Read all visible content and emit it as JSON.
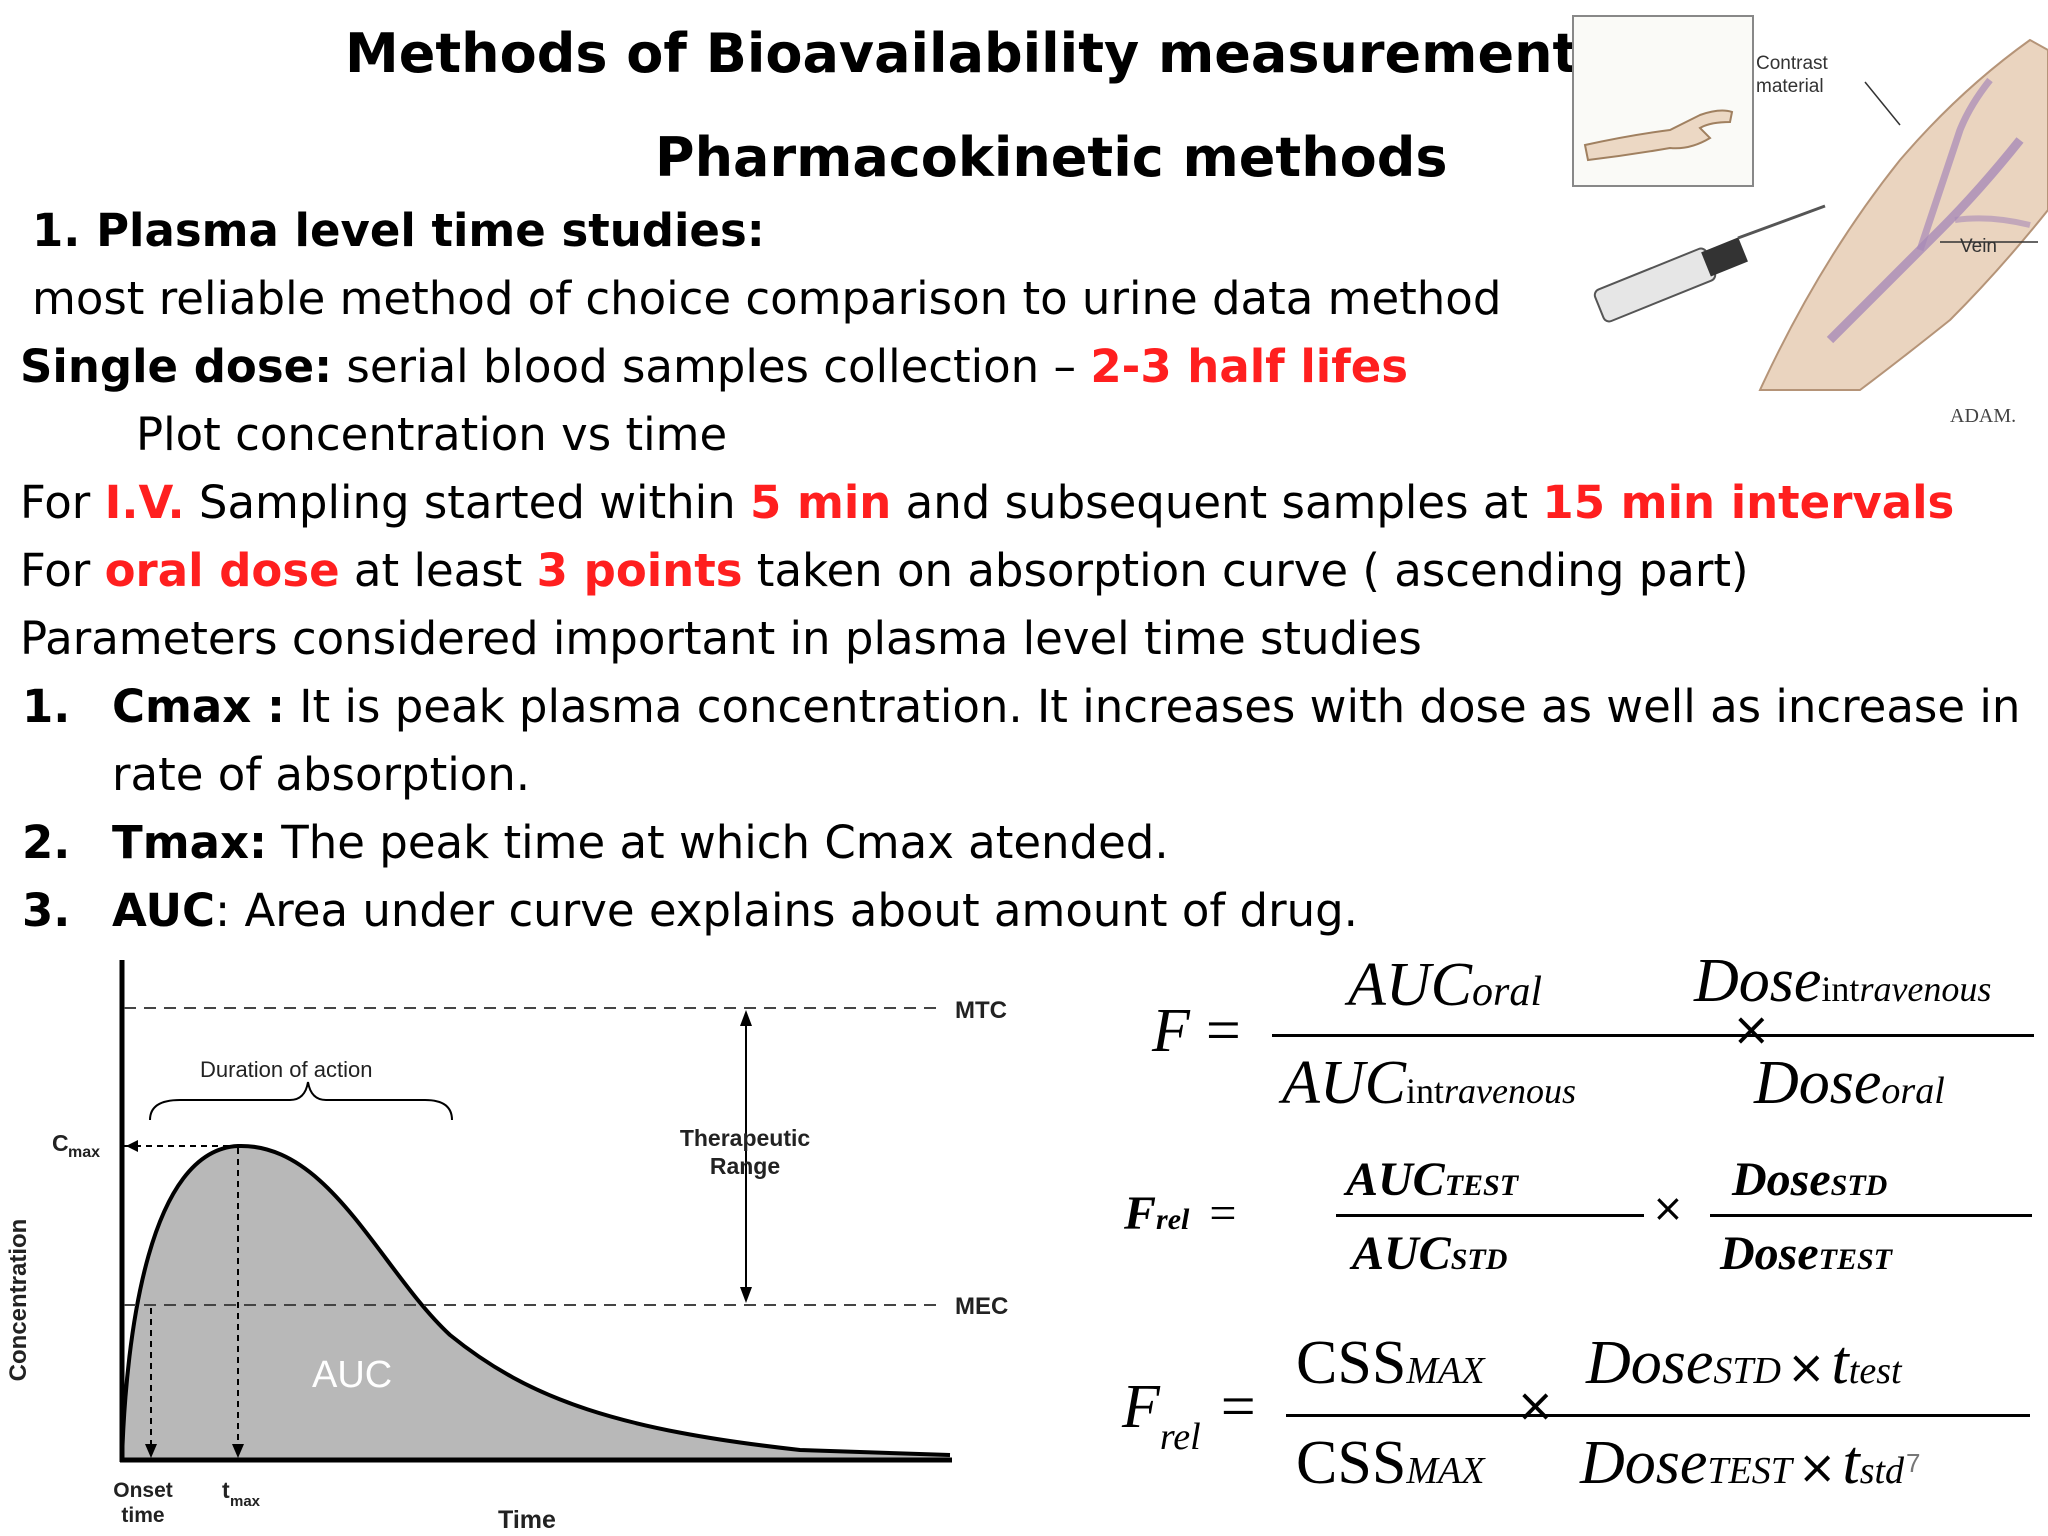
{
  "title": "Methods of Bioavailability measurement",
  "subtitle": "Pharmacokinetic methods",
  "section_heading": "1. Plasma level time studies:",
  "lines": {
    "reliable": "most reliable method of choice comparison to urine data method",
    "single_dose_label": "Single dose:",
    "single_dose_text": " serial blood samples collection – ",
    "single_dose_red": "2-3 half lifes",
    "plot": "Plot concentration vs time",
    "iv_pre": "For ",
    "iv_red1": "I.V.",
    "iv_mid1": "  Sampling started within ",
    "iv_red2": "5 min",
    "iv_mid2": " and subsequent samples at ",
    "iv_red3": "15 min intervals",
    "oral_pre": "For ",
    "oral_red1": "oral dose",
    "oral_mid": " at least ",
    "oral_red2": "3 points",
    "oral_post": " taken on absorption curve ( ascending part)",
    "params": "Parameters considered important in plasma level time studies"
  },
  "list": [
    {
      "num": "1.",
      "term": "Cmax :",
      "text": " It is peak plasma concentration. It increases with dose as well as increase in",
      "text2": "rate of absorption."
    },
    {
      "num": "2.",
      "term": "Tmax:",
      "text": " The peak time at which Cmax  atended."
    },
    {
      "num": "3.",
      "term": "AUC",
      "text": ": Area under curve explains about amount of drug."
    }
  ],
  "illustration": {
    "labels": {
      "contrast": "Contrast",
      "material": "material",
      "vein": "Vein",
      "credit": "ADAM."
    }
  },
  "chart_data": {
    "type": "area",
    "title": "",
    "xlabel": "Time",
    "ylabel": "Concentration",
    "curve": "single-dose plasma concentration-time profile",
    "annotations": {
      "mtc": "MTC",
      "mec": "MEC",
      "duration": "Duration of action",
      "therapeutic_1": "Therapeutic",
      "therapeutic_2": "Range",
      "auc": "AUC",
      "cmax_main": "C",
      "cmax_sub": "max",
      "onset_1": "Onset",
      "onset_2": "time",
      "tmax_main": "t",
      "tmax_sub": "max"
    },
    "colors": {
      "fill": "#b8b8b8",
      "line": "#000000"
    }
  },
  "formulas": {
    "f1": {
      "lhs": "F",
      "num_a": "AUC",
      "num_a_sub": "oral",
      "den_a": "AUC",
      "den_a_sub1": "int",
      "den_a_sub2": "ravenous",
      "num_b": "Dose",
      "num_b_sub1": "int",
      "num_b_sub2": "ravenous",
      "den_b": "Dose",
      "den_b_sub": "oral"
    },
    "f2": {
      "lhs": "F",
      "lhs_sub": "rel",
      "num_a": "AUC",
      "num_a_sub": "TEST",
      "den_a": "AUC",
      "den_a_sub": "STD",
      "num_b": "Dose",
      "num_b_sub": "STD",
      "den_b": "Dose",
      "den_b_sub": "TEST"
    },
    "f3": {
      "lhs": "F",
      "lhs_sub": "rel",
      "num_a": "CSS",
      "num_a_sub": "MAX",
      "den_a": "CSS",
      "den_a_sub": "MAX",
      "num_b": "Dose",
      "num_b_sub": "STD",
      "num_b_t": "t",
      "num_b_t_sub": "test",
      "den_b": "Dose",
      "den_b_sub": "TEST",
      "den_b_t": "t",
      "den_b_t_sub": "std"
    },
    "eq": "=",
    "times": "×"
  },
  "slide_number": "7"
}
